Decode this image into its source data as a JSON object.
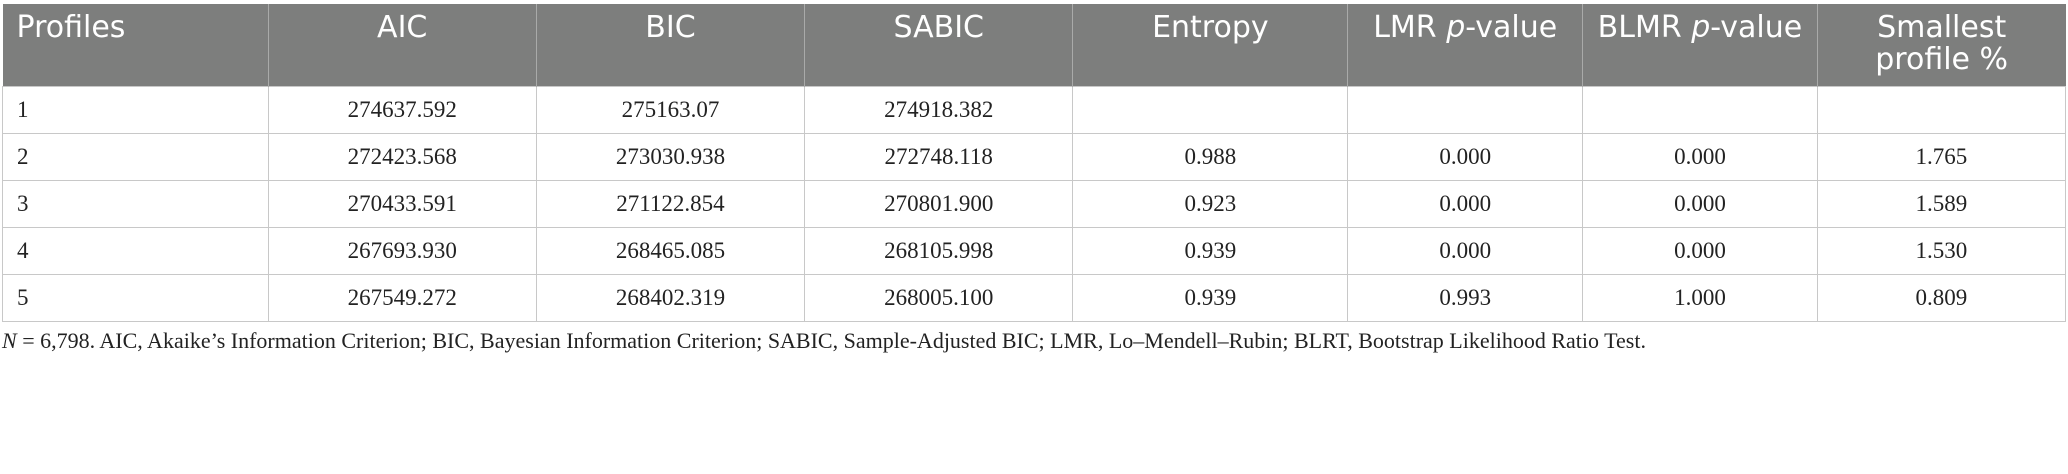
{
  "headers": [
    {
      "pre": "Profiles",
      "it": "",
      "post": ""
    },
    {
      "pre": "AIC",
      "it": "",
      "post": ""
    },
    {
      "pre": "BIC",
      "it": "",
      "post": ""
    },
    {
      "pre": "SABIC",
      "it": "",
      "post": ""
    },
    {
      "pre": "Entropy",
      "it": "",
      "post": ""
    },
    {
      "pre": "LMR ",
      "it": "p",
      "post": "-value"
    },
    {
      "pre": "BLMR ",
      "it": "p",
      "post": "-value"
    },
    {
      "pre": "Smallest profile %",
      "it": "",
      "post": ""
    }
  ],
  "rows": [
    [
      "1",
      "274637.592",
      "275163.07",
      "274918.382",
      "",
      "",
      "",
      ""
    ],
    [
      "2",
      "272423.568",
      "273030.938",
      "272748.118",
      "0.988",
      "0.000",
      "0.000",
      "1.765"
    ],
    [
      "3",
      "270433.591",
      "271122.854",
      "270801.900",
      "0.923",
      "0.000",
      "0.000",
      "1.589"
    ],
    [
      "4",
      "267693.930",
      "268465.085",
      "268105.998",
      "0.939",
      "0.000",
      "0.000",
      "1.530"
    ],
    [
      "5",
      "267549.272",
      "268402.319",
      "268005.100",
      "0.939",
      "0.993",
      "1.000",
      "0.809"
    ]
  ],
  "note": {
    "n_symbol": "N",
    "text": " = 6,798. AIC, Akaike’s Information Criterion; BIC, Bayesian Information Criterion; SABIC, Sample-Adjusted BIC; LMR, Lo–Mendell–Rubin; BLRT, Bootstrap Likelihood Ratio Test."
  }
}
